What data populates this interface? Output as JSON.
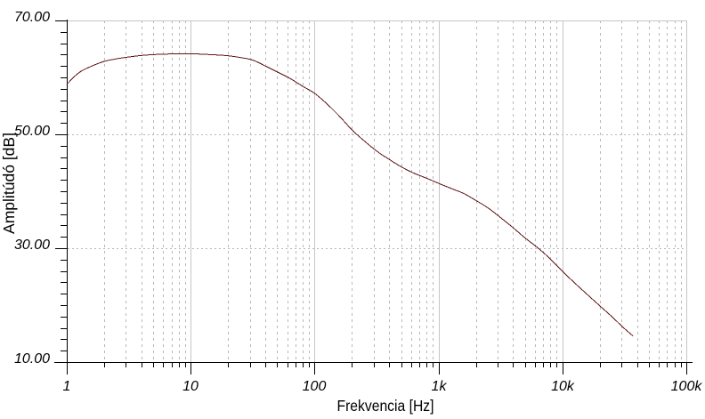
{
  "chart_data": {
    "type": "line",
    "title": "",
    "xlabel": "Frekvencia [Hz]",
    "ylabel": "Amplitúdó [dB]",
    "x_scale": "log",
    "x_range": [
      1,
      100000
    ],
    "x_tick_labels": [
      "1",
      "10",
      "100",
      "1k",
      "10k",
      "100k"
    ],
    "x_tick_values": [
      1,
      10,
      100,
      1000,
      10000,
      100000
    ],
    "y_range": [
      10,
      70
    ],
    "y_tick_values": [
      10,
      30,
      50,
      70
    ],
    "y_tick_labels": [
      "10.00",
      "30.00",
      "50.00",
      "70.00"
    ],
    "y_minor_tick_step": 2,
    "grid": {
      "horizontal_dashed_at": [
        30,
        50
      ],
      "horizontal_solid_at": [
        70
      ],
      "vertical_solid_at": [
        10,
        100,
        1000,
        10000,
        100000
      ],
      "vertical_dashed_at_log_minors": true
    },
    "legend_position": "none",
    "series": [
      {
        "name": "Amplitúdó",
        "color": "#5f1414",
        "points": [
          [
            1,
            58.8
          ],
          [
            1.25,
            60.8
          ],
          [
            1.6,
            62.0
          ],
          [
            2,
            62.8
          ],
          [
            2.5,
            63.25
          ],
          [
            3.2,
            63.6
          ],
          [
            4,
            63.85
          ],
          [
            5,
            64.0
          ],
          [
            6.5,
            64.1
          ],
          [
            8,
            64.15
          ],
          [
            10,
            64.15
          ],
          [
            13,
            64.05
          ],
          [
            16,
            63.95
          ],
          [
            20,
            63.8
          ],
          [
            25,
            63.5
          ],
          [
            32,
            63.0
          ],
          [
            40,
            62.0
          ],
          [
            50,
            60.95
          ],
          [
            63,
            59.85
          ],
          [
            80,
            58.45
          ],
          [
            100,
            57.2
          ],
          [
            125,
            55.4
          ],
          [
            160,
            53.1
          ],
          [
            200,
            50.8
          ],
          [
            250,
            48.9
          ],
          [
            320,
            47.0
          ],
          [
            400,
            45.6
          ],
          [
            500,
            44.3
          ],
          [
            630,
            43.2
          ],
          [
            800,
            42.3
          ],
          [
            1000,
            41.4
          ],
          [
            1300,
            40.4
          ],
          [
            1600,
            39.6
          ],
          [
            2000,
            38.4
          ],
          [
            2500,
            37.1
          ],
          [
            3200,
            35.3
          ],
          [
            4000,
            33.6
          ],
          [
            5000,
            31.8
          ],
          [
            6300,
            30.1
          ],
          [
            8000,
            28.1
          ],
          [
            10000,
            25.95
          ],
          [
            13000,
            23.6
          ],
          [
            16000,
            21.8
          ],
          [
            20000,
            19.9
          ],
          [
            25000,
            18.0
          ],
          [
            32000,
            15.8
          ],
          [
            37500,
            14.5
          ]
        ]
      }
    ]
  },
  "colors": {
    "curve": "#5f1414",
    "grid_dashed": "#b8b8b8",
    "grid_solid": "#c6c6c6",
    "axis": "#000000",
    "background": "#ffffff"
  }
}
